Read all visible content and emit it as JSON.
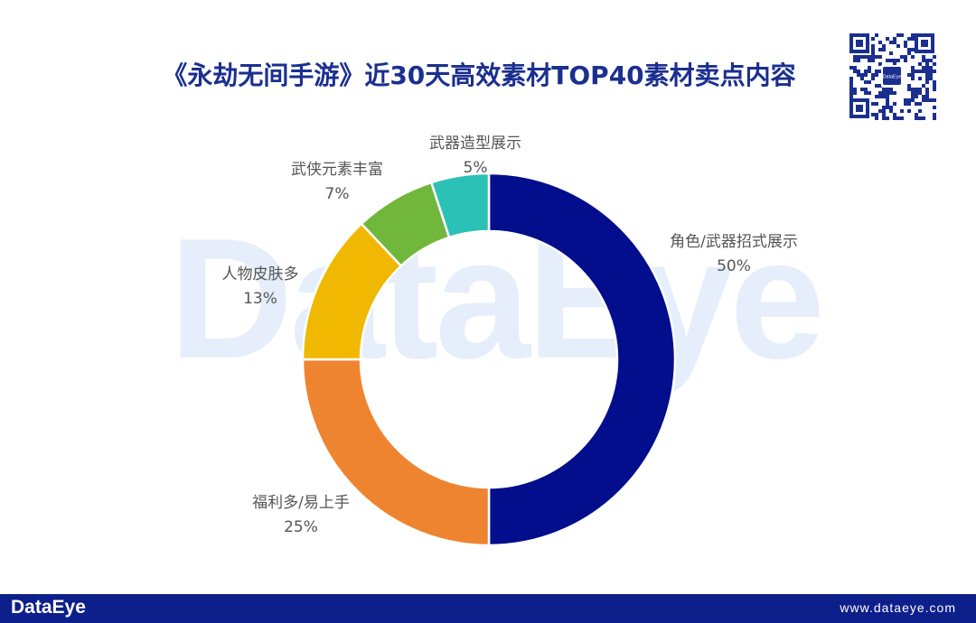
{
  "title": "《永劫无间手游》近30天高效素材TOP40素材卖点内容",
  "watermark": "DataEye",
  "qr_logo": "DataEye",
  "footer": {
    "logo": "DataEye",
    "url": "www.dataeye.com"
  },
  "colors": {
    "title": "#1b2f8f",
    "footer_bg": "#0c1f8a"
  },
  "chart_data": {
    "type": "pie",
    "variant": "donut",
    "title": "《永劫无间手游》近30天高效素材TOP40素材卖点内容",
    "slices": [
      {
        "label": "角色/武器招式展示",
        "value": 50,
        "display": "50%",
        "color": "#020e8c"
      },
      {
        "label": "福利多/易上手",
        "value": 25,
        "display": "25%",
        "color": "#ee8430"
      },
      {
        "label": "人物皮肤多",
        "value": 13,
        "display": "13%",
        "color": "#f0b800"
      },
      {
        "label": "武侠元素丰富",
        "value": 7,
        "display": "7%",
        "color": "#70b73c"
      },
      {
        "label": "武器造型展示",
        "value": 5,
        "display": "5%",
        "color": "#2cc1b6"
      }
    ],
    "legend": "none"
  }
}
